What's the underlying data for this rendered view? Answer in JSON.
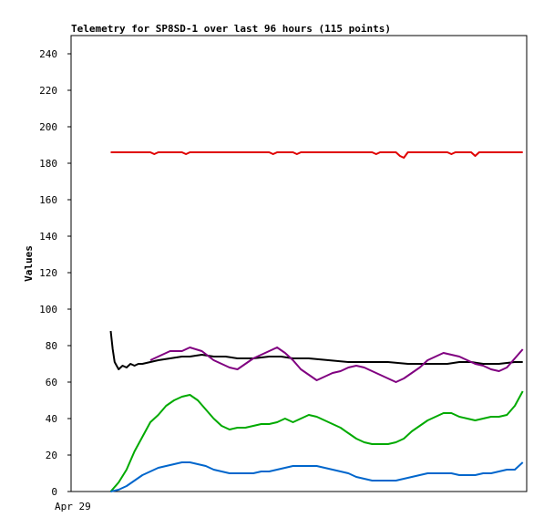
{
  "chart_data": {
    "type": "line",
    "title": "Telemetry for SP8SD-1 over last 96 hours (115 points)",
    "xlabel": "",
    "ylabel": "Values",
    "ylim": [
      0,
      250
    ],
    "yticks": [
      0,
      20,
      40,
      60,
      80,
      100,
      120,
      140,
      160,
      180,
      200,
      220,
      240
    ],
    "ytick_labels": [
      "0",
      "20",
      "40",
      "60",
      "80",
      "100",
      "120",
      "140",
      "160",
      "180",
      "200",
      "220",
      "240"
    ],
    "xtick_labels": [
      "Apr 29"
    ],
    "xlim": [
      0,
      115
    ],
    "grid": false,
    "series": [
      {
        "color": "#e00000",
        "x": [
          10,
          20,
          21,
          22,
          28,
          29,
          30,
          50,
          51,
          52,
          56,
          57,
          58,
          76,
          77,
          78,
          82,
          83,
          84,
          85,
          95,
          96,
          97,
          101,
          102,
          103,
          114
        ],
        "values": [
          186,
          186,
          185,
          186,
          186,
          185,
          186,
          186,
          185,
          186,
          186,
          185,
          186,
          186,
          185,
          186,
          186,
          184,
          183,
          186,
          186,
          185,
          186,
          186,
          184,
          186,
          186
        ]
      },
      {
        "color": "#000000",
        "x": [
          10,
          10.5,
          11,
          12,
          13,
          14,
          15,
          16,
          17,
          18,
          20,
          22,
          25,
          28,
          30,
          33,
          36,
          39,
          42,
          46,
          50,
          53,
          56,
          60,
          65,
          70,
          75,
          80,
          85,
          90,
          95,
          98,
          101,
          104,
          108,
          112,
          114
        ],
        "values": [
          88,
          78,
          71,
          67,
          69,
          68,
          70,
          69,
          70,
          70,
          71,
          72,
          73,
          74,
          74,
          75,
          74,
          74,
          73,
          73,
          74,
          74,
          73,
          73,
          72,
          71,
          71,
          71,
          70,
          70,
          70,
          71,
          71,
          70,
          70,
          71,
          71
        ]
      },
      {
        "color": "#800080",
        "x": [
          20,
          23,
          25,
          28,
          30,
          33,
          36,
          38,
          40,
          42,
          44,
          46,
          48,
          50,
          52,
          54,
          56,
          58,
          60,
          62,
          64,
          66,
          68,
          70,
          72,
          74,
          76,
          78,
          80,
          82,
          84,
          86,
          88,
          90,
          92,
          94,
          96,
          98,
          100,
          102,
          104,
          106,
          108,
          110,
          112,
          114
        ],
        "values": [
          72,
          75,
          77,
          77,
          79,
          77,
          72,
          70,
          68,
          67,
          70,
          73,
          75,
          77,
          79,
          76,
          72,
          67,
          64,
          61,
          63,
          65,
          66,
          68,
          69,
          68,
          66,
          64,
          62,
          60,
          62,
          65,
          68,
          72,
          74,
          76,
          75,
          74,
          72,
          70,
          69,
          67,
          66,
          68,
          73,
          78
        ]
      },
      {
        "color": "#00aa00",
        "x": [
          10,
          12,
          14,
          16,
          18,
          20,
          22,
          24,
          26,
          28,
          30,
          32,
          34,
          36,
          38,
          40,
          42,
          44,
          46,
          48,
          50,
          52,
          54,
          56,
          58,
          60,
          62,
          64,
          66,
          68,
          70,
          72,
          74,
          76,
          78,
          80,
          82,
          84,
          86,
          88,
          90,
          92,
          94,
          96,
          98,
          100,
          102,
          104,
          106,
          108,
          110,
          112,
          114
        ],
        "values": [
          0,
          5,
          12,
          22,
          30,
          38,
          42,
          47,
          50,
          52,
          53,
          50,
          45,
          40,
          36,
          34,
          35,
          35,
          36,
          37,
          37,
          38,
          40,
          38,
          40,
          42,
          41,
          39,
          37,
          35,
          32,
          29,
          27,
          26,
          26,
          26,
          27,
          29,
          33,
          36,
          39,
          41,
          43,
          43,
          41,
          40,
          39,
          40,
          41,
          41,
          42,
          47,
          55
        ]
      },
      {
        "color": "#0066cc",
        "x": [
          10,
          12,
          14,
          16,
          18,
          20,
          22,
          24,
          26,
          28,
          30,
          32,
          34,
          36,
          38,
          40,
          42,
          44,
          46,
          48,
          50,
          52,
          54,
          56,
          58,
          60,
          62,
          64,
          66,
          68,
          70,
          72,
          74,
          76,
          78,
          80,
          82,
          84,
          86,
          88,
          90,
          92,
          94,
          96,
          98,
          100,
          102,
          104,
          106,
          108,
          110,
          112,
          114
        ],
        "values": [
          0,
          1,
          3,
          6,
          9,
          11,
          13,
          14,
          15,
          16,
          16,
          15,
          14,
          12,
          11,
          10,
          10,
          10,
          10,
          11,
          11,
          12,
          13,
          14,
          14,
          14,
          14,
          13,
          12,
          11,
          10,
          8,
          7,
          6,
          6,
          6,
          6,
          7,
          8,
          9,
          10,
          10,
          10,
          10,
          9,
          9,
          9,
          10,
          10,
          11,
          12,
          12,
          16
        ]
      }
    ]
  }
}
